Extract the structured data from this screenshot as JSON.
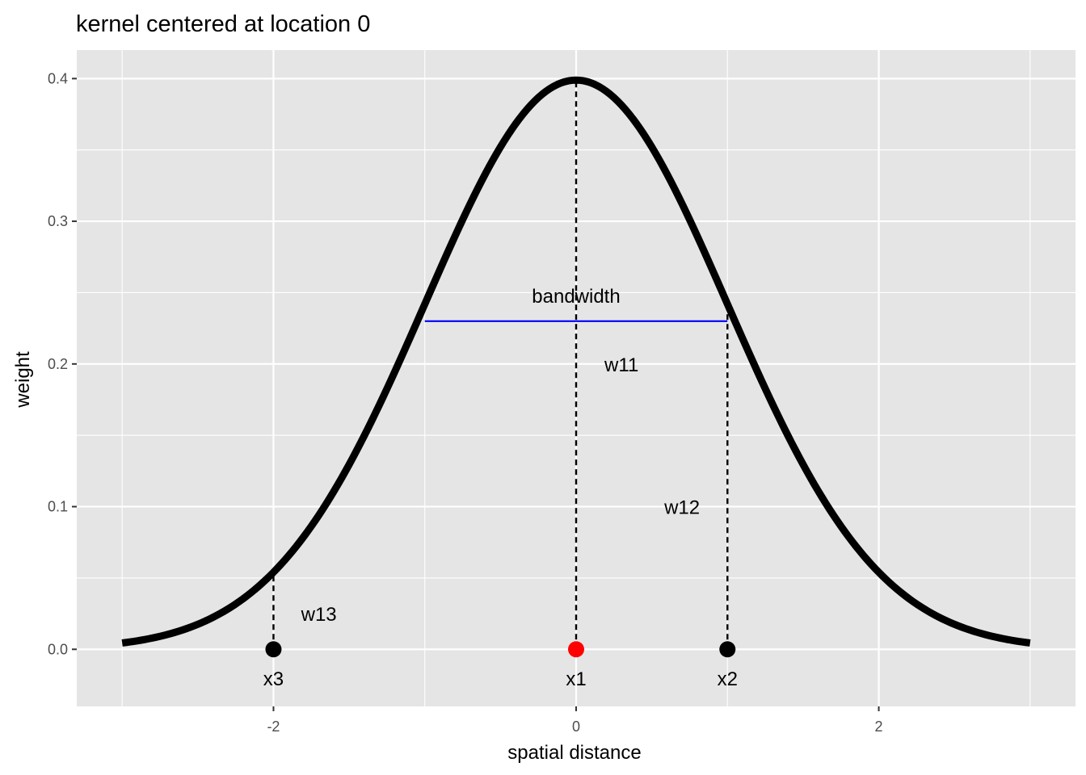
{
  "chart_data": {
    "type": "line",
    "title": "kernel centered at location 0",
    "xlabel": "spatial distance",
    "ylabel": "weight",
    "xlim": [
      -3.3,
      3.3
    ],
    "ylim": [
      -0.04,
      0.42
    ],
    "x_ticks": [
      -2,
      0,
      2
    ],
    "x_tick_labels": [
      "-2",
      "0",
      "2"
    ],
    "y_ticks": [
      0.0,
      0.1,
      0.2,
      0.3,
      0.4
    ],
    "y_tick_labels": [
      "0.0",
      "0.1",
      "0.2",
      "0.3",
      "0.4"
    ],
    "grid": true,
    "curve": {
      "kind": "normal density",
      "mean": 0,
      "sd": 1,
      "x_range": [
        -3,
        3
      ],
      "color": "#000000"
    },
    "points": [
      {
        "label": "x1",
        "x": 0,
        "y": 0,
        "color": "#ff0000"
      },
      {
        "label": "x2",
        "x": 1,
        "y": 0,
        "color": "#000000"
      },
      {
        "label": "x3",
        "x": -2,
        "y": 0,
        "color": "#000000"
      }
    ],
    "weight_lines": [
      {
        "label": "w11",
        "x": 0,
        "y_top": 0.3989,
        "label_x": 0.3,
        "label_y": 0.2
      },
      {
        "label": "w12",
        "x": 1,
        "y_top": 0.242,
        "label_x": 0.7,
        "label_y": 0.1
      },
      {
        "label": "w13",
        "x": -2,
        "y_top": 0.054,
        "label_x": -1.7,
        "label_y": 0.025
      }
    ],
    "bandwidth": {
      "label": "bandwidth",
      "x_from": -1,
      "x_to": 1,
      "y": 0.23,
      "label_x": 0,
      "label_y": 0.248,
      "color": "#0000ff"
    },
    "colors": {
      "panel_bg": "#e5e5e5",
      "grid": "#ffffff",
      "curve": "#000000",
      "bandwidth": "#0000ff",
      "focal_point": "#ff0000"
    }
  }
}
